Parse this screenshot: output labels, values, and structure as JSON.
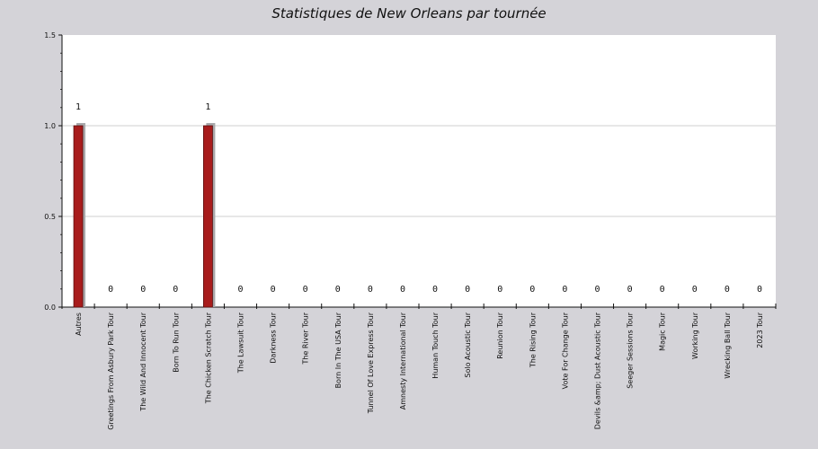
{
  "chart_data": {
    "type": "bar",
    "title": "Statistiques de New Orleans par tournée",
    "xlabel": "",
    "ylabel": "",
    "ylim": [
      0,
      1.5
    ],
    "yticks": [
      "0.0",
      "0.5",
      "1.0",
      "1.5"
    ],
    "grid": true,
    "categories": [
      "Autres",
      "Greetings From Asbury Park Tour",
      "The Wild And Innocent Tour",
      "Born To Run Tour",
      "The Chicken Scratch Tour",
      "The Lawsuit Tour",
      "Darkness Tour",
      "The River Tour",
      "Born In The USA Tour",
      "Tunnel Of Love Express Tour",
      "Amnesty International Tour",
      "Human Touch Tour",
      "Solo Acoustic Tour",
      "Reunion Tour",
      "The Rising Tour",
      "Vote For Change Tour",
      "Devils &amp; Dust Acoustic Tour",
      "Seeger Sessions Tour",
      "Magic Tour",
      "Working Tour",
      "Wrecking Ball Tour",
      "2023 Tour"
    ],
    "values": [
      1,
      0,
      0,
      0,
      1,
      0,
      0,
      0,
      0,
      0,
      0,
      0,
      0,
      0,
      0,
      0,
      0,
      0,
      0,
      0,
      0,
      0
    ],
    "value_labels": [
      "1",
      "0",
      "0",
      "0",
      "1",
      "0",
      "0",
      "0",
      "0",
      "0",
      "0",
      "0",
      "0",
      "0",
      "0",
      "0",
      "0",
      "0",
      "0",
      "0",
      "0",
      "0"
    ],
    "colors": {
      "bar": "#a81c1c",
      "bar_shadow": "#a9a9ab",
      "plot_bg": "#ffffff",
      "page_bg": "#d4d3d8",
      "grid": "#cfcfcf"
    }
  }
}
